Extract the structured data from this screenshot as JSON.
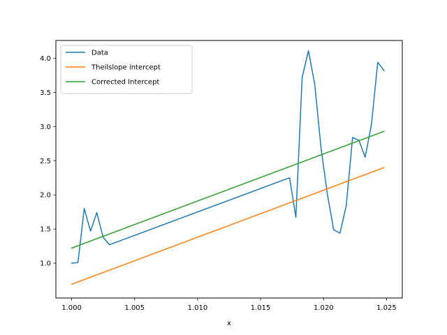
{
  "chart_data": {
    "type": "line",
    "title": "",
    "xlabel": "x",
    "ylabel": "",
    "xlim": [
      0.99875,
      1.02625
    ],
    "ylim": [
      0.49,
      4.26
    ],
    "x_ticks": [
      1.0,
      1.005,
      1.01,
      1.015,
      1.02,
      1.025
    ],
    "x_tick_labels": [
      "1.000",
      "1.005",
      "1.010",
      "1.015",
      "1.020",
      "1.025"
    ],
    "y_ticks": [
      1.0,
      1.5,
      2.0,
      2.5,
      3.0,
      3.5,
      4.0
    ],
    "y_tick_labels": [
      "1.0",
      "1.5",
      "2.0",
      "2.5",
      "3.0",
      "3.5",
      "4.0"
    ],
    "grid": false,
    "legend_position": "top-left",
    "series": [
      {
        "name": "Data",
        "color": "#1f77b4",
        "x": [
          1.0,
          1.0005,
          1.001,
          1.0015,
          1.002,
          1.0025,
          1.003,
          1.0173,
          1.0178,
          1.0183,
          1.0188,
          1.0193,
          1.0198,
          1.0203,
          1.0208,
          1.0213,
          1.0218,
          1.0223,
          1.0228,
          1.0233,
          1.0238,
          1.0243,
          1.0248
        ],
        "y": [
          1.0,
          1.01,
          1.8,
          1.47,
          1.74,
          1.38,
          1.27,
          2.25,
          1.67,
          3.72,
          4.11,
          3.62,
          2.68,
          2.01,
          1.49,
          1.44,
          1.84,
          2.84,
          2.8,
          2.55,
          3.03,
          3.94,
          3.82
        ]
      },
      {
        "name": "Theilslope intercept",
        "color": "#ff7f0e",
        "x": [
          1.0,
          1.0248
        ],
        "y": [
          0.69,
          2.4
        ]
      },
      {
        "name": "Corrected Intercept",
        "color": "#2ca02c",
        "x": [
          1.0,
          1.0248
        ],
        "y": [
          1.22,
          2.93
        ]
      }
    ]
  }
}
